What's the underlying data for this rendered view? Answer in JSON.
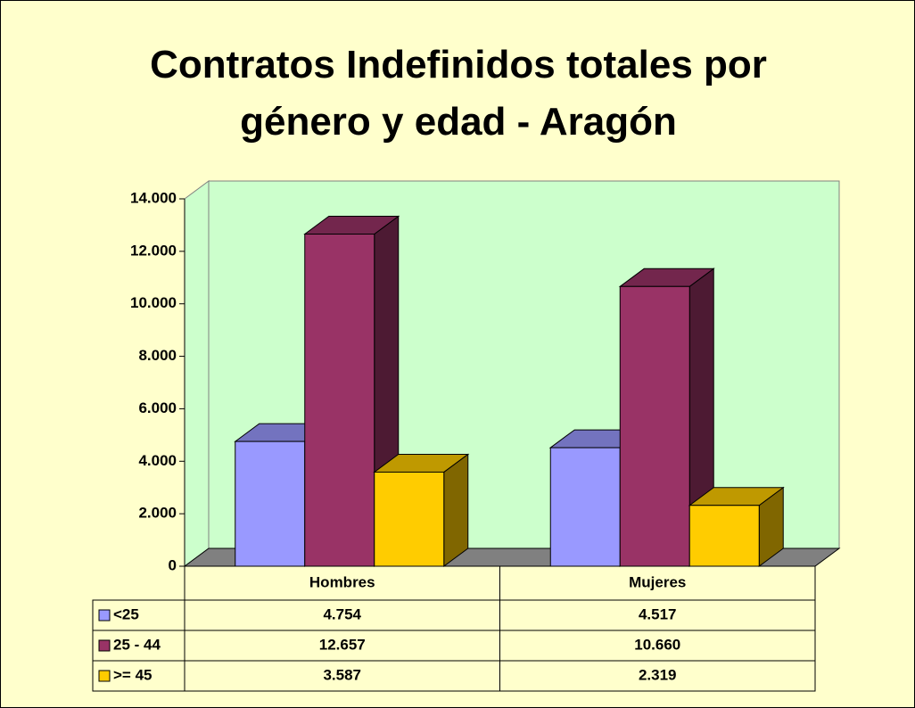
{
  "chart_data": {
    "type": "bar3d",
    "title": "Contratos Indefinidos totales por género y edad - Aragón",
    "categories": [
      "Hombres",
      "Mujeres"
    ],
    "series": [
      {
        "name": "<25",
        "color": "#9999ff",
        "values": [
          4754,
          4517
        ],
        "value_labels": [
          "4.754",
          "4.517"
        ]
      },
      {
        "name": "25 - 44",
        "color": "#993366",
        "values": [
          12657,
          10660
        ],
        "value_labels": [
          "12.657",
          "10.660"
        ]
      },
      {
        "name": ">= 45",
        "color": "#ffcc00",
        "values": [
          3587,
          2319
        ],
        "value_labels": [
          "3.587",
          "2.319"
        ]
      }
    ],
    "ylim": [
      0,
      14000
    ],
    "yticks": [
      0,
      {
        "value": 2000,
        "label": "2.000"
      },
      {
        "value": 4000,
        "label": "4.000"
      },
      {
        "value": 6000,
        "label": "6.000"
      },
      {
        "value": 8000,
        "label": "8.000"
      },
      {
        "value": 10000,
        "label": "10.000"
      },
      {
        "value": 12000,
        "label": "12.000"
      },
      {
        "value": 14000,
        "label": "14.000"
      }
    ],
    "grid": false
  }
}
